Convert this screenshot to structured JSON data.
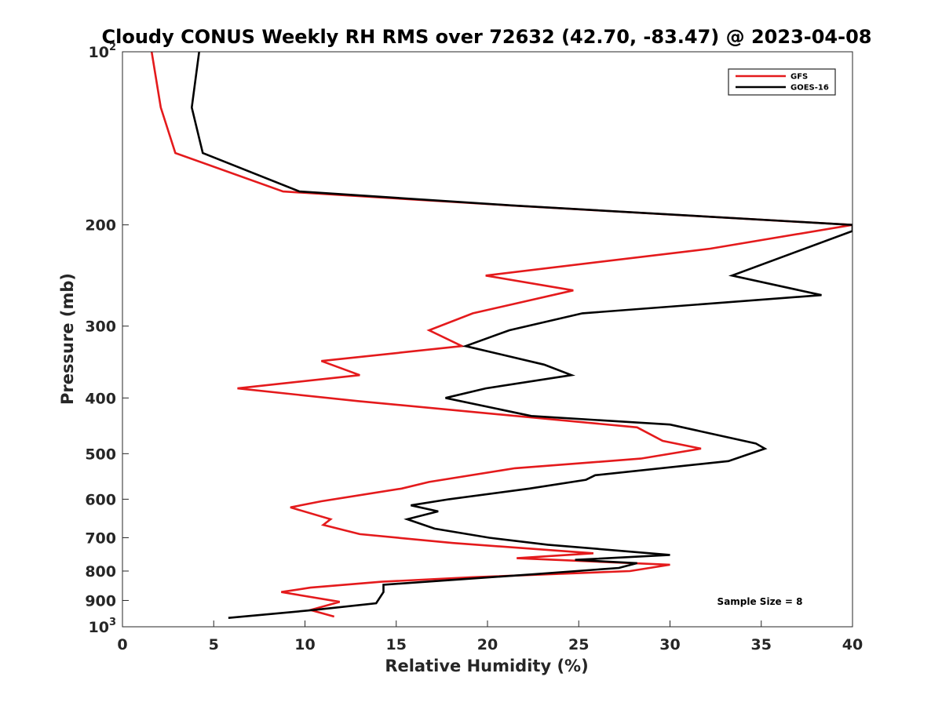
{
  "chart_data": {
    "type": "line",
    "title": "Cloudy CONUS Weekly RH RMS over 72632 (42.70, -83.47) @ 2023-04-08",
    "xlabel": "Relative Humidity (%)",
    "ylabel": "Pressure (mb)",
    "xlim": [
      0,
      40
    ],
    "ylim": [
      100,
      1000
    ],
    "y_scale": "log",
    "y_reversed": true,
    "grid": false,
    "legend_position": "top-right",
    "x_ticks": [
      "0",
      "5",
      "10",
      "15",
      "20",
      "25",
      "30",
      "35",
      "40"
    ],
    "y_ticks": [
      {
        "value": 100,
        "base": "10",
        "exp": "2"
      },
      {
        "value": 200,
        "label": "200"
      },
      {
        "value": 300,
        "label": "300"
      },
      {
        "value": 400,
        "label": "400"
      },
      {
        "value": 500,
        "label": "500"
      },
      {
        "value": 600,
        "label": "600"
      },
      {
        "value": 700,
        "label": "700"
      },
      {
        "value": 800,
        "label": "800"
      },
      {
        "value": 900,
        "label": "900"
      },
      {
        "value": 1000,
        "base": "10",
        "exp": "3"
      }
    ],
    "annotation": "Sample Size = 8",
    "series": [
      {
        "name": "GFS",
        "color": "#e41a1c",
        "points": [
          [
            1.6,
            100
          ],
          [
            2.1,
            125
          ],
          [
            2.9,
            150
          ],
          [
            8.8,
            175
          ],
          [
            21.2,
            185
          ],
          [
            40.0,
            200
          ],
          [
            32.2,
            220
          ],
          [
            19.9,
            245
          ],
          [
            24.7,
            260
          ],
          [
            19.2,
            285
          ],
          [
            16.8,
            305
          ],
          [
            18.6,
            325
          ],
          [
            10.9,
            345
          ],
          [
            13.0,
            365
          ],
          [
            6.3,
            385
          ],
          [
            12.9,
            405
          ],
          [
            28.2,
            450
          ],
          [
            29.6,
            475
          ],
          [
            31.7,
            490
          ],
          [
            28.4,
            510
          ],
          [
            21.5,
            530
          ],
          [
            16.8,
            560
          ],
          [
            15.3,
            575
          ],
          [
            10.9,
            605
          ],
          [
            9.2,
            620
          ],
          [
            11.4,
            650
          ],
          [
            11.0,
            665
          ],
          [
            13.0,
            690
          ],
          [
            18.1,
            715
          ],
          [
            25.8,
            745
          ],
          [
            21.6,
            760
          ],
          [
            30.0,
            780
          ],
          [
            27.8,
            800
          ],
          [
            19.2,
            820
          ],
          [
            14.2,
            835
          ],
          [
            10.3,
            855
          ],
          [
            8.7,
            870
          ],
          [
            11.9,
            905
          ],
          [
            10.3,
            935
          ],
          [
            11.6,
            960
          ]
        ]
      },
      {
        "name": "GOES-16",
        "color": "#000000",
        "points": [
          [
            4.2,
            100
          ],
          [
            3.8,
            125
          ],
          [
            4.4,
            150
          ],
          [
            9.7,
            175
          ],
          [
            21.3,
            185
          ],
          [
            40.0,
            200
          ],
          [
            40.0,
            205
          ],
          [
            33.4,
            245
          ],
          [
            38.3,
            265
          ],
          [
            25.2,
            285
          ],
          [
            21.2,
            305
          ],
          [
            18.8,
            325
          ],
          [
            23.1,
            350
          ],
          [
            24.6,
            365
          ],
          [
            19.9,
            385
          ],
          [
            17.7,
            400
          ],
          [
            22.4,
            430
          ],
          [
            30.0,
            445
          ],
          [
            34.7,
            480
          ],
          [
            35.2,
            490
          ],
          [
            33.2,
            515
          ],
          [
            25.9,
            545
          ],
          [
            25.4,
            555
          ],
          [
            22.3,
            575
          ],
          [
            17.9,
            600
          ],
          [
            15.8,
            615
          ],
          [
            17.3,
            630
          ],
          [
            15.6,
            650
          ],
          [
            17.1,
            675
          ],
          [
            20.1,
            700
          ],
          [
            23.3,
            720
          ],
          [
            30.0,
            750
          ],
          [
            24.8,
            765
          ],
          [
            28.2,
            775
          ],
          [
            27.2,
            790
          ],
          [
            22.6,
            810
          ],
          [
            14.3,
            845
          ],
          [
            14.3,
            870
          ],
          [
            13.9,
            910
          ],
          [
            10.5,
            935
          ],
          [
            5.8,
            965
          ]
        ]
      }
    ]
  }
}
